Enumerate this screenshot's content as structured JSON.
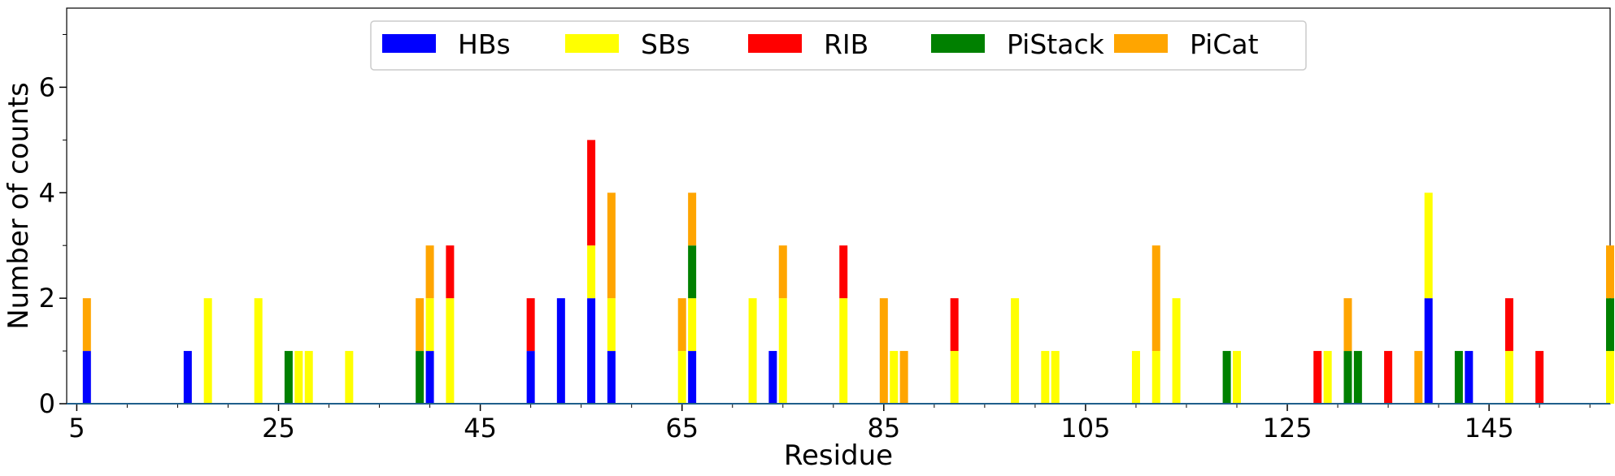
{
  "chart_data": {
    "type": "bar",
    "stacked": true,
    "xlabel": "Residue",
    "ylabel": "Number of counts",
    "xlim": [
      4,
      157
    ],
    "ylim": [
      0,
      7.5
    ],
    "xticks": [
      5,
      25,
      45,
      65,
      85,
      105,
      125,
      145
    ],
    "yticks": [
      0,
      2,
      4,
      6
    ],
    "legend_position": "top-center",
    "series": [
      {
        "name": "HBs",
        "color": "#0000ff"
      },
      {
        "name": "SBs",
        "color": "#ffff00"
      },
      {
        "name": "RIB",
        "color": "#ff0000"
      },
      {
        "name": "PiStack",
        "color": "#008000"
      },
      {
        "name": "PiCat",
        "color": "#ffa500"
      }
    ],
    "residues": [
      {
        "x": 6,
        "HBs": 1,
        "SBs": 0,
        "RIB": 0,
        "PiStack": 0,
        "PiCat": 1
      },
      {
        "x": 16,
        "HBs": 1,
        "SBs": 0,
        "RIB": 0,
        "PiStack": 0,
        "PiCat": 0
      },
      {
        "x": 18,
        "HBs": 0,
        "SBs": 2,
        "RIB": 0,
        "PiStack": 0,
        "PiCat": 0
      },
      {
        "x": 23,
        "HBs": 0,
        "SBs": 2,
        "RIB": 0,
        "PiStack": 0,
        "PiCat": 0
      },
      {
        "x": 26,
        "HBs": 0,
        "SBs": 0,
        "RIB": 0,
        "PiStack": 1,
        "PiCat": 0
      },
      {
        "x": 27,
        "HBs": 0,
        "SBs": 1,
        "RIB": 0,
        "PiStack": 0,
        "PiCat": 0
      },
      {
        "x": 28,
        "HBs": 0,
        "SBs": 1,
        "RIB": 0,
        "PiStack": 0,
        "PiCat": 0
      },
      {
        "x": 32,
        "HBs": 0,
        "SBs": 1,
        "RIB": 0,
        "PiStack": 0,
        "PiCat": 0
      },
      {
        "x": 39,
        "HBs": 0,
        "SBs": 0,
        "RIB": 0,
        "PiStack": 1,
        "PiCat": 1
      },
      {
        "x": 40,
        "HBs": 1,
        "SBs": 1,
        "RIB": 0,
        "PiStack": 0,
        "PiCat": 1
      },
      {
        "x": 42,
        "HBs": 0,
        "SBs": 2,
        "RIB": 1,
        "PiStack": 0,
        "PiCat": 0
      },
      {
        "x": 50,
        "HBs": 1,
        "SBs": 0,
        "RIB": 1,
        "PiStack": 0,
        "PiCat": 0
      },
      {
        "x": 53,
        "HBs": 2,
        "SBs": 0,
        "RIB": 0,
        "PiStack": 0,
        "PiCat": 0
      },
      {
        "x": 56,
        "HBs": 2,
        "SBs": 1,
        "RIB": 2,
        "PiStack": 0,
        "PiCat": 0
      },
      {
        "x": 58,
        "HBs": 1,
        "SBs": 1,
        "RIB": 0,
        "PiStack": 0,
        "PiCat": 2
      },
      {
        "x": 65,
        "HBs": 0,
        "SBs": 1,
        "RIB": 0,
        "PiStack": 0,
        "PiCat": 1
      },
      {
        "x": 66,
        "HBs": 1,
        "SBs": 1,
        "RIB": 0,
        "PiStack": 1,
        "PiCat": 1
      },
      {
        "x": 72,
        "HBs": 0,
        "SBs": 2,
        "RIB": 0,
        "PiStack": 0,
        "PiCat": 0
      },
      {
        "x": 74,
        "HBs": 1,
        "SBs": 0,
        "RIB": 0,
        "PiStack": 0,
        "PiCat": 0
      },
      {
        "x": 75,
        "HBs": 0,
        "SBs": 2,
        "RIB": 0,
        "PiStack": 0,
        "PiCat": 1
      },
      {
        "x": 81,
        "HBs": 0,
        "SBs": 2,
        "RIB": 1,
        "PiStack": 0,
        "PiCat": 0
      },
      {
        "x": 85,
        "HBs": 0,
        "SBs": 0,
        "RIB": 0,
        "PiStack": 0,
        "PiCat": 2
      },
      {
        "x": 86,
        "HBs": 0,
        "SBs": 1,
        "RIB": 0,
        "PiStack": 0,
        "PiCat": 0
      },
      {
        "x": 87,
        "HBs": 0,
        "SBs": 0,
        "RIB": 0,
        "PiStack": 0,
        "PiCat": 1
      },
      {
        "x": 92,
        "HBs": 0,
        "SBs": 1,
        "RIB": 1,
        "PiStack": 0,
        "PiCat": 0
      },
      {
        "x": 98,
        "HBs": 0,
        "SBs": 2,
        "RIB": 0,
        "PiStack": 0,
        "PiCat": 0
      },
      {
        "x": 101,
        "HBs": 0,
        "SBs": 1,
        "RIB": 0,
        "PiStack": 0,
        "PiCat": 0
      },
      {
        "x": 102,
        "HBs": 0,
        "SBs": 1,
        "RIB": 0,
        "PiStack": 0,
        "PiCat": 0
      },
      {
        "x": 110,
        "HBs": 0,
        "SBs": 1,
        "RIB": 0,
        "PiStack": 0,
        "PiCat": 0
      },
      {
        "x": 112,
        "HBs": 0,
        "SBs": 1,
        "RIB": 0,
        "PiStack": 0,
        "PiCat": 2
      },
      {
        "x": 114,
        "HBs": 0,
        "SBs": 2,
        "RIB": 0,
        "PiStack": 0,
        "PiCat": 0
      },
      {
        "x": 119,
        "HBs": 0,
        "SBs": 0,
        "RIB": 0,
        "PiStack": 1,
        "PiCat": 0
      },
      {
        "x": 120,
        "HBs": 0,
        "SBs": 1,
        "RIB": 0,
        "PiStack": 0,
        "PiCat": 0
      },
      {
        "x": 128,
        "HBs": 0,
        "SBs": 0,
        "RIB": 1,
        "PiStack": 0,
        "PiCat": 0
      },
      {
        "x": 129,
        "HBs": 0,
        "SBs": 1,
        "RIB": 0,
        "PiStack": 0,
        "PiCat": 0
      },
      {
        "x": 131,
        "HBs": 0,
        "SBs": 0,
        "RIB": 0,
        "PiStack": 1,
        "PiCat": 1
      },
      {
        "x": 132,
        "HBs": 0,
        "SBs": 0,
        "RIB": 0,
        "PiStack": 1,
        "PiCat": 0
      },
      {
        "x": 135,
        "HBs": 0,
        "SBs": 0,
        "RIB": 1,
        "PiStack": 0,
        "PiCat": 0
      },
      {
        "x": 138,
        "HBs": 0,
        "SBs": 0,
        "RIB": 0,
        "PiStack": 0,
        "PiCat": 1
      },
      {
        "x": 139,
        "HBs": 2,
        "SBs": 2,
        "RIB": 0,
        "PiStack": 0,
        "PiCat": 0
      },
      {
        "x": 142,
        "HBs": 0,
        "SBs": 0,
        "RIB": 0,
        "PiStack": 1,
        "PiCat": 0
      },
      {
        "x": 143,
        "HBs": 1,
        "SBs": 0,
        "RIB": 0,
        "PiStack": 0,
        "PiCat": 0
      },
      {
        "x": 147,
        "HBs": 0,
        "SBs": 1,
        "RIB": 1,
        "PiStack": 0,
        "PiCat": 0
      },
      {
        "x": 150,
        "HBs": 0,
        "SBs": 0,
        "RIB": 1,
        "PiStack": 0,
        "PiCat": 0
      },
      {
        "x": 157,
        "HBs": 0,
        "SBs": 1,
        "RIB": 0,
        "PiStack": 1,
        "PiCat": 1
      }
    ]
  }
}
